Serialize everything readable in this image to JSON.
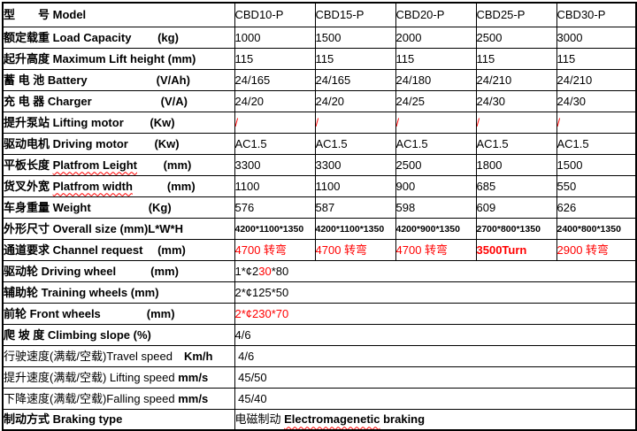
{
  "colors": {
    "accent_red": "#FF0000",
    "border": "#000000",
    "background": "#FFFFFF",
    "text": "#000000"
  },
  "table": {
    "models": [
      "CBD10-P",
      "CBD15-P",
      "CBD20-P",
      "CBD25-P",
      "CBD30-P"
    ],
    "rows": [
      {
        "label": [
          {
            "t": "型　　号 Model",
            "b": true
          }
        ],
        "cells": [
          [
            {
              "t": "CBD10-P"
            }
          ],
          [
            {
              "t": "CBD15-P"
            }
          ],
          [
            {
              "t": "CBD20-P"
            }
          ],
          [
            {
              "t": "CBD25-P"
            }
          ],
          [
            {
              "t": "CBD30-P"
            }
          ]
        ]
      },
      {
        "label": [
          {
            "t": "额定载重 Load Capacity　　 (kg)",
            "b": true
          }
        ],
        "cells": [
          [
            {
              "t": "1000"
            }
          ],
          [
            {
              "t": "1500"
            }
          ],
          [
            {
              "t": "2000"
            }
          ],
          [
            {
              "t": "2500"
            }
          ],
          [
            {
              "t": "3000"
            }
          ]
        ]
      },
      {
        "label": [
          {
            "t": "起升高度 Maximum Lift height (mm)",
            "b": true
          }
        ],
        "cells": [
          [
            {
              "t": "115"
            }
          ],
          [
            {
              "t": "115"
            }
          ],
          [
            {
              "t": "115"
            }
          ],
          [
            {
              "t": "115"
            }
          ],
          [
            {
              "t": "115"
            }
          ]
        ]
      },
      {
        "label": [
          {
            "t": "蓄 电 池 Battery　　　　　　(V/Ah)",
            "b": true
          }
        ],
        "cells": [
          [
            {
              "t": "24/165"
            }
          ],
          [
            {
              "t": "24/165"
            }
          ],
          [
            {
              "t": "24/180"
            }
          ],
          [
            {
              "t": "24/210"
            }
          ],
          [
            {
              "t": "24/210"
            }
          ]
        ]
      },
      {
        "label": [
          {
            "t": "充 电 器 Charger　　　　　　(V/A)",
            "b": true
          }
        ],
        "cells": [
          [
            {
              "t": "24/20"
            }
          ],
          [
            {
              "t": "24/20"
            }
          ],
          [
            {
              "t": "24/25"
            }
          ],
          [
            {
              "t": "24/30"
            }
          ],
          [
            {
              "t": "24/30"
            }
          ]
        ]
      },
      {
        "label": [
          {
            "t": "提升泵站 Lifting motor　　 (Kw)",
            "b": true
          }
        ],
        "cells": [
          [
            {
              "t": "/",
              "r": true
            }
          ],
          [
            {
              "t": "/",
              "r": true
            }
          ],
          [
            {
              "t": "/",
              "r": true
            }
          ],
          [
            {
              "t": "/",
              "r": true
            }
          ],
          [
            {
              "t": "/",
              "r": true
            }
          ]
        ]
      },
      {
        "label": [
          {
            "t": "驱动电机 Driving motor　　 (Kw)",
            "b": true
          }
        ],
        "cells": [
          [
            {
              "t": "AC1.5"
            }
          ],
          [
            {
              "t": "AC1.5"
            }
          ],
          [
            {
              "t": "AC1.5"
            }
          ],
          [
            {
              "t": "AC1.5"
            }
          ],
          [
            {
              "t": "AC1.5"
            }
          ]
        ]
      },
      {
        "label": [
          {
            "t": "平板长度 ",
            "b": true
          },
          {
            "t": "Platfrom Leight",
            "b": true,
            "w": true
          },
          {
            "t": "　　 (mm)",
            "b": true
          }
        ],
        "cells": [
          [
            {
              "t": "3300"
            }
          ],
          [
            {
              "t": "3300"
            }
          ],
          [
            {
              "t": "2500"
            }
          ],
          [
            {
              "t": "1800"
            }
          ],
          [
            {
              "t": "1500"
            }
          ]
        ]
      },
      {
        "label": [
          {
            "t": "货叉外宽 ",
            "b": true
          },
          {
            "t": "Platfrom width",
            "b": true,
            "w": true
          },
          {
            "t": "　　　(mm)",
            "b": true
          }
        ],
        "cells": [
          [
            {
              "t": "1100"
            }
          ],
          [
            {
              "t": "1100"
            }
          ],
          [
            {
              "t": "900"
            }
          ],
          [
            {
              "t": "685"
            }
          ],
          [
            {
              "t": "550"
            }
          ]
        ]
      },
      {
        "label": [
          {
            "t": "车身重量 Weight　　　　　(Kg)",
            "b": true
          }
        ],
        "cells": [
          [
            {
              "t": "576"
            }
          ],
          [
            {
              "t": "587"
            }
          ],
          [
            {
              "t": "598"
            }
          ],
          [
            {
              "t": "609"
            }
          ],
          [
            {
              "t": "626"
            }
          ]
        ]
      },
      {
        "label": [
          {
            "t": "外形尺寸 Overall size (mm)L*W*H",
            "b": true
          }
        ],
        "cells": [
          [
            {
              "t": "4200*1100*1350",
              "s": true
            }
          ],
          [
            {
              "t": "4200*1100*1350",
              "s": true
            }
          ],
          [
            {
              "t": "4200*900*1350",
              "s": true
            }
          ],
          [
            {
              "t": "2700*800*1350",
              "s": true
            }
          ],
          [
            {
              "t": "2400*800*1350",
              "s": true
            }
          ]
        ]
      },
      {
        "label": [
          {
            "t": "通道要求 Channel request　 (mm)",
            "b": true
          }
        ],
        "cells": [
          [
            {
              "t": "4700 转弯",
              "r": true
            }
          ],
          [
            {
              "t": "4700 转弯",
              "r": true
            }
          ],
          [
            {
              "t": "4700 转弯",
              "r": true
            }
          ],
          [
            {
              "t": "3500Turn",
              "r": true,
              "b": true
            }
          ],
          [
            {
              "t": "2900 转弯",
              "r": true
            }
          ]
        ]
      },
      {
        "label": [
          {
            "t": "驱动轮 Driving wheel　　　(mm)",
            "b": true
          }
        ],
        "merged": [
          {
            "t": "1*¢2"
          },
          {
            "t": "30",
            "r": true
          },
          {
            "t": "*80"
          }
        ]
      },
      {
        "label": [
          {
            "t": "辅助轮 Training wheels (mm)",
            "b": true
          }
        ],
        "merged": [
          {
            "t": "2*¢125*50"
          }
        ]
      },
      {
        "label": [
          {
            "t": "前轮 Front wheels　　　　(mm)",
            "b": true
          }
        ],
        "merged": [
          {
            "t": "2*¢230*70",
            "r": true
          }
        ]
      },
      {
        "label": [
          {
            "t": "爬 坡 度 Climbing slope (%)",
            "b": true
          }
        ],
        "merged": [
          {
            "t": "4/6"
          }
        ]
      },
      {
        "label": [
          {
            "t": "行驶速度(满载/空载)Travel speed"
          },
          {
            "t": "　"
          },
          {
            "t": "Km/h",
            "b": true
          }
        ],
        "merged": [
          {
            "t": " 4/6"
          }
        ]
      },
      {
        "label": [
          {
            "t": "提升速度(满载/空载) Lifting speed "
          },
          {
            "t": "mm/s",
            "b": true
          }
        ],
        "merged": [
          {
            "t": " 45/50"
          }
        ]
      },
      {
        "label": [
          {
            "t": "下降速度(满载/空载)Falling speed "
          },
          {
            "t": "mm/s",
            "b": true
          }
        ],
        "merged": [
          {
            "t": " 45/40"
          }
        ]
      },
      {
        "label": [
          {
            "t": "制动方式 Braking type",
            "b": true
          }
        ],
        "merged": [
          {
            "t": "电磁制动 "
          },
          {
            "t": "Electromagenetic",
            "b": true,
            "w": true
          },
          {
            "t": " braking",
            "b": true
          }
        ]
      }
    ]
  }
}
